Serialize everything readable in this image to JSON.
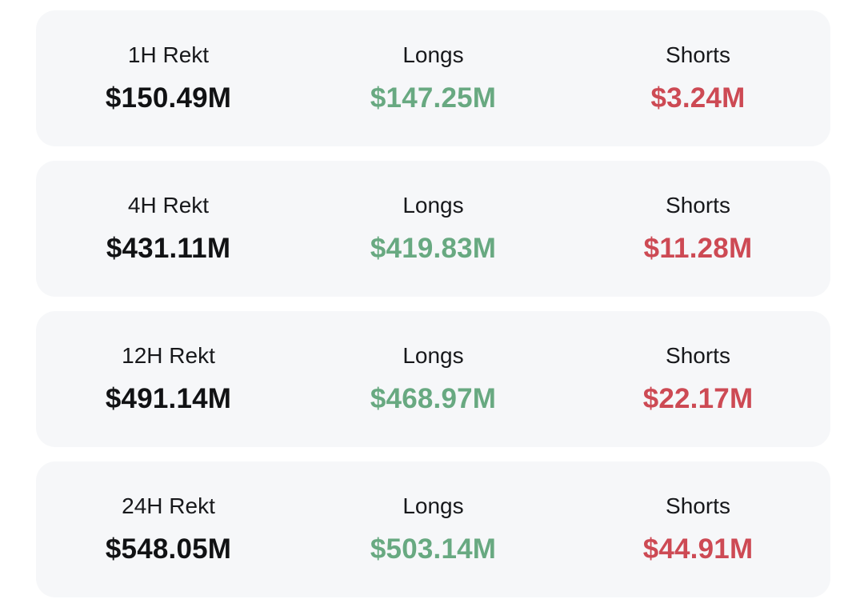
{
  "colors": {
    "page_bg": "#ffffff",
    "card_bg": "#f6f7f9",
    "label_text": "#17181b",
    "total_text": "#111214",
    "longs_text": "#68a981",
    "shorts_text": "#cd4a54"
  },
  "cards": [
    {
      "period_label": "1H Rekt",
      "total_value": "$150.49M",
      "longs_label": "Longs",
      "longs_value": "$147.25M",
      "shorts_label": "Shorts",
      "shorts_value": "$3.24M"
    },
    {
      "period_label": "4H Rekt",
      "total_value": "$431.11M",
      "longs_label": "Longs",
      "longs_value": "$419.83M",
      "shorts_label": "Shorts",
      "shorts_value": "$11.28M"
    },
    {
      "period_label": "12H Rekt",
      "total_value": "$491.14M",
      "longs_label": "Longs",
      "longs_value": "$468.97M",
      "shorts_label": "Shorts",
      "shorts_value": "$22.17M"
    },
    {
      "period_label": "24H Rekt",
      "total_value": "$548.05M",
      "longs_label": "Longs",
      "longs_value": "$503.14M",
      "shorts_label": "Shorts",
      "shorts_value": "$44.91M"
    }
  ]
}
